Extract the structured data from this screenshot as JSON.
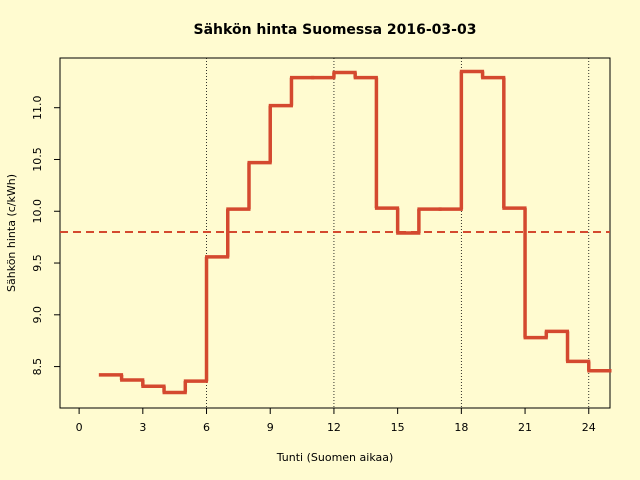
{
  "chart_data": {
    "type": "step",
    "title": "Sähkön hinta Suomessa 2016-03-03",
    "x_label": "Tunti (Suomen aikaa)",
    "y_label": "Sähkön hinta (c/kWh)",
    "x": [
      1,
      2,
      3,
      4,
      5,
      6,
      7,
      8,
      9,
      10,
      11,
      12,
      13,
      14,
      15,
      16,
      17,
      18,
      19,
      20,
      21,
      22,
      23,
      24
    ],
    "series": [
      {
        "color": "#d4492f",
        "values": [
          8.42,
          8.37,
          8.31,
          8.25,
          8.36,
          9.56,
          10.02,
          10.47,
          11.02,
          11.29,
          11.29,
          11.34,
          11.29,
          10.03,
          9.79,
          10.02,
          10.02,
          11.35,
          11.29,
          10.03,
          8.78,
          8.84,
          8.55,
          8.46
        ]
      }
    ],
    "mean_line": 9.8,
    "vlines": [
      6,
      12,
      18,
      24
    ],
    "xlim": [
      -0.9,
      25
    ],
    "ylim": [
      8.1,
      11.48
    ],
    "xticks": [
      0,
      3,
      6,
      9,
      12,
      15,
      18,
      21,
      24
    ],
    "yticks": [
      {
        "value": 8.5,
        "label": "8.5"
      },
      {
        "value": 9,
        "label": "9.0"
      },
      {
        "value": 9.5,
        "label": "9.5"
      },
      {
        "value": 10,
        "label": "10.0"
      },
      {
        "value": 10.5,
        "label": "10.5"
      },
      {
        "value": 11,
        "label": "11.0"
      }
    ]
  }
}
